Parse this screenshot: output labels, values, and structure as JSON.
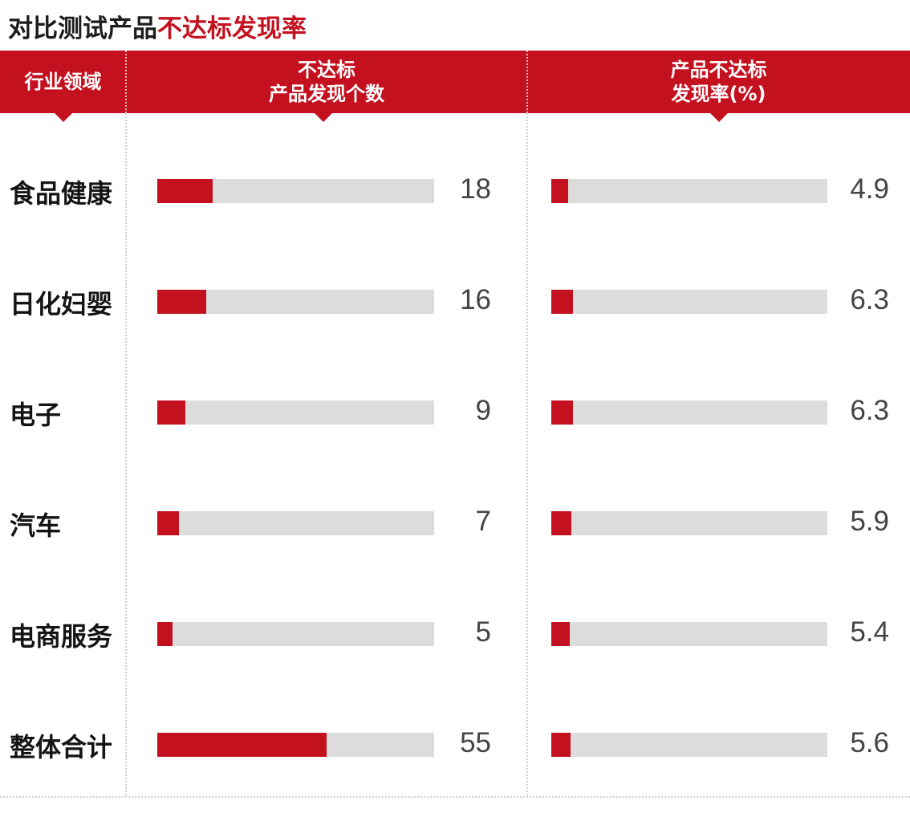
{
  "title": {
    "main": "对比测试产品",
    "accent": "不达标发现率"
  },
  "header": {
    "industry": "行业领域",
    "count_line1": "不达标",
    "count_line2": "产品发现个数",
    "rate_line1": "产品不达标",
    "rate_line2": "发现率(%)"
  },
  "colors": {
    "accent": "#c4111f",
    "track": "#dcdcdc"
  },
  "chart_data": {
    "type": "bar",
    "orientation": "horizontal",
    "categories": [
      "食品健康",
      "日化妇婴",
      "电子",
      "汽车",
      "电商服务",
      "整体合计"
    ],
    "series": [
      {
        "name": "不达标产品发现个数",
        "values": [
          18,
          16,
          9,
          7,
          5,
          55
        ],
        "labels": [
          "18",
          "16",
          "9",
          "7",
          "5",
          "55"
        ],
        "max": 90
      },
      {
        "name": "产品不达标发现率(%)",
        "values": [
          4.9,
          6.3,
          6.3,
          5.9,
          5.4,
          5.6
        ],
        "labels": [
          "4.9",
          "6.3",
          "6.3",
          "5.9",
          "5.4",
          "5.6"
        ],
        "max": 80
      }
    ],
    "grid": false,
    "legend": "none"
  }
}
